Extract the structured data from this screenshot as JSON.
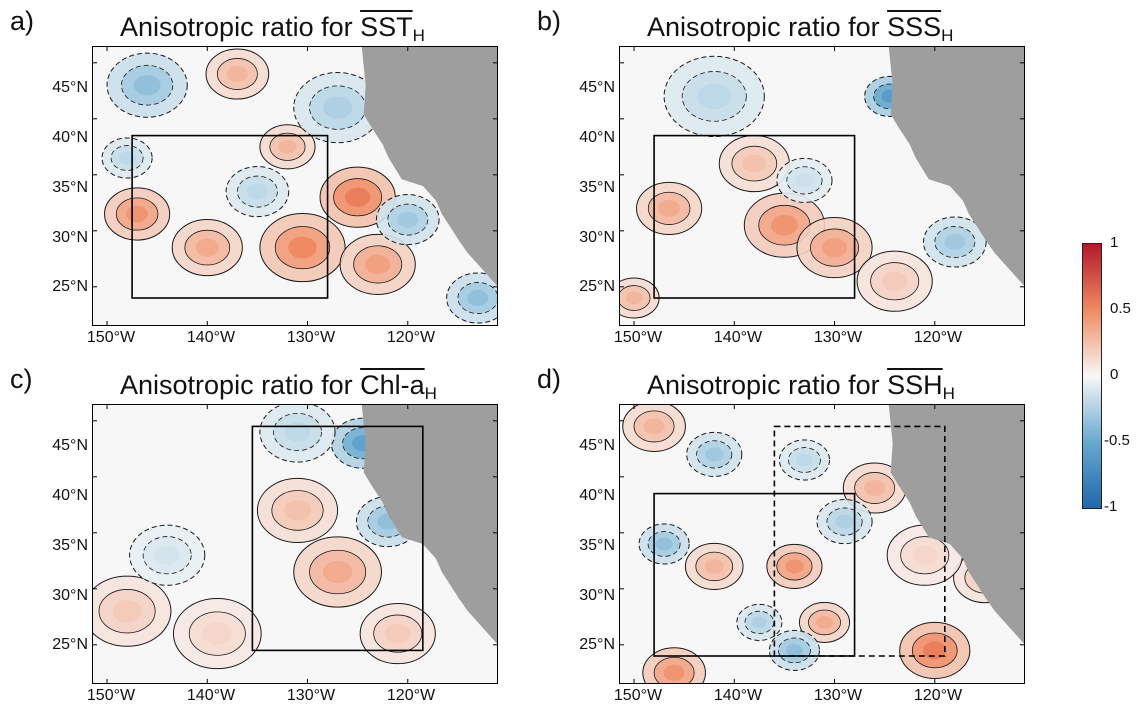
{
  "figure": {
    "colorbar": {
      "ticks": [
        "1",
        "0.5",
        "0",
        "-0.5",
        "-1"
      ],
      "tick_values": [
        1,
        0.5,
        0,
        -0.5,
        -1
      ],
      "colors": {
        "max": "#b2182b",
        "mid_pos": "#ef8a62",
        "zero": "#f7f7f7",
        "mid_neg": "#67a9cf",
        "min": "#2166ac"
      }
    },
    "land_color": "#9e9e9e",
    "contour_color": "#1a1a1a"
  },
  "chart_data": [
    {
      "type": "heatmap",
      "panel_label": "a)",
      "title_prefix": "Anisotropic ratio for ",
      "title_symbol": "SST",
      "title_subscript": "H",
      "x_ticks": [
        "150°W",
        "140°W",
        "130°W",
        "120°W"
      ],
      "x_tick_values": [
        -150,
        -140,
        -130,
        -120
      ],
      "y_ticks": [
        "45°N",
        "40°N",
        "35°N",
        "30°N",
        "25°N"
      ],
      "y_tick_values": [
        45,
        40,
        35,
        30,
        25
      ],
      "xlim": [
        -151.5,
        -111
      ],
      "ylim": [
        21.5,
        46.5
      ],
      "colorbar_range": [
        -1,
        1
      ],
      "boxes": [
        {
          "style": "solid",
          "lon": [
            -147.5,
            -128
          ],
          "lat": [
            24,
            38.5
          ]
        }
      ],
      "blobs": [
        {
          "lon": -147,
          "lat": 31.5,
          "value": 0.45,
          "r": 2.6
        },
        {
          "lon": -140,
          "lat": 28.5,
          "value": 0.35,
          "r": 2.8
        },
        {
          "lon": -130.5,
          "lat": 28.5,
          "value": 0.5,
          "r": 3.4
        },
        {
          "lon": -125,
          "lat": 33,
          "value": 0.55,
          "r": 3.0
        },
        {
          "lon": -123,
          "lat": 27,
          "value": 0.4,
          "r": 3.0
        },
        {
          "lon": -132,
          "lat": 37.5,
          "value": 0.3,
          "r": 2.2
        },
        {
          "lon": -137,
          "lat": 44,
          "value": 0.3,
          "r": 2.5
        },
        {
          "lon": -146,
          "lat": 43,
          "value": -0.35,
          "r": 3.2
        },
        {
          "lon": -127,
          "lat": 41,
          "value": -0.25,
          "r": 3.5
        },
        {
          "lon": -120,
          "lat": 31,
          "value": -0.3,
          "r": 2.5
        },
        {
          "lon": -135,
          "lat": 33.5,
          "value": -0.2,
          "r": 2.5
        },
        {
          "lon": -148,
          "lat": 36.5,
          "value": -0.2,
          "r": 2.0
        },
        {
          "lon": -113,
          "lat": 24,
          "value": -0.35,
          "r": 2.5
        }
      ]
    },
    {
      "type": "heatmap",
      "panel_label": "b)",
      "title_prefix": "Anisotropic ratio for ",
      "title_symbol": "SSS",
      "title_subscript": "H",
      "x_ticks": [
        "150°W",
        "140°W",
        "130°W",
        "120°W"
      ],
      "x_tick_values": [
        -150,
        -140,
        -130,
        -120
      ],
      "y_ticks": [
        "45°N",
        "40°N",
        "35°N",
        "30°N",
        "25°N"
      ],
      "y_tick_values": [
        45,
        40,
        35,
        30,
        25
      ],
      "xlim": [
        -151.5,
        -111
      ],
      "ylim": [
        21.5,
        46.5
      ],
      "colorbar_range": [
        -1,
        1
      ],
      "boxes": [
        {
          "style": "solid",
          "lon": [
            -148,
            -128
          ],
          "lat": [
            24,
            38.5
          ]
        }
      ],
      "blobs": [
        {
          "lon": -146.5,
          "lat": 32,
          "value": 0.35,
          "r": 2.6
        },
        {
          "lon": -135,
          "lat": 30.5,
          "value": 0.45,
          "r": 3.2
        },
        {
          "lon": -130,
          "lat": 28.5,
          "value": 0.4,
          "r": 3.0
        },
        {
          "lon": -138,
          "lat": 36,
          "value": 0.25,
          "r": 2.8
        },
        {
          "lon": -150,
          "lat": 24,
          "value": 0.3,
          "r": 2.0
        },
        {
          "lon": -124,
          "lat": 25.5,
          "value": 0.2,
          "r": 3.0
        },
        {
          "lon": -124.5,
          "lat": 42,
          "value": -0.6,
          "r": 2.0
        },
        {
          "lon": -142,
          "lat": 42,
          "value": -0.2,
          "r": 4.0
        },
        {
          "lon": -118,
          "lat": 29,
          "value": -0.3,
          "r": 2.5
        },
        {
          "lon": -133,
          "lat": 34.5,
          "value": -0.15,
          "r": 2.2
        }
      ]
    },
    {
      "type": "heatmap",
      "panel_label": "c)",
      "title_prefix": "Anisotropic ratio for ",
      "title_symbol": "Chl-a",
      "title_subscript": "H",
      "x_ticks": [
        "150°W",
        "140°W",
        "130°W",
        "120°W"
      ],
      "x_tick_values": [
        -150,
        -140,
        -130,
        -120
      ],
      "y_ticks": [
        "45°N",
        "40°N",
        "35°N",
        "30°N",
        "25°N"
      ],
      "y_tick_values": [
        45,
        40,
        35,
        30,
        25
      ],
      "xlim": [
        -151.5,
        -111
      ],
      "ylim": [
        21.5,
        46.5
      ],
      "colorbar_range": [
        -1,
        1
      ],
      "boxes": [
        {
          "style": "solid",
          "lon": [
            -135.5,
            -118.5
          ],
          "lat": [
            24.5,
            44.5
          ]
        }
      ],
      "blobs": [
        {
          "lon": -127,
          "lat": 31.5,
          "value": 0.35,
          "r": 3.5
        },
        {
          "lon": -131,
          "lat": 37,
          "value": 0.25,
          "r": 3.2
        },
        {
          "lon": -148,
          "lat": 28,
          "value": 0.2,
          "r": 3.5
        },
        {
          "lon": -139,
          "lat": 26,
          "value": 0.15,
          "r": 3.5
        },
        {
          "lon": -121,
          "lat": 26,
          "value": 0.2,
          "r": 3.0
        },
        {
          "lon": -124.5,
          "lat": 43,
          "value": -0.55,
          "r": 2.5
        },
        {
          "lon": -122,
          "lat": 36,
          "value": -0.35,
          "r": 2.5
        },
        {
          "lon": -131,
          "lat": 44,
          "value": -0.2,
          "r": 3.0
        },
        {
          "lon": -144,
          "lat": 33,
          "value": -0.12,
          "r": 3.0
        }
      ]
    },
    {
      "type": "heatmap",
      "panel_label": "d)",
      "title_prefix": "Anisotropic ratio for ",
      "title_symbol": "SSH",
      "title_subscript": "H",
      "x_ticks": [
        "150°W",
        "140°W",
        "130°W",
        "120°W"
      ],
      "x_tick_values": [
        -150,
        -140,
        -130,
        -120
      ],
      "y_ticks": [
        "45°N",
        "40°N",
        "35°N",
        "30°N",
        "25°N"
      ],
      "y_tick_values": [
        45,
        40,
        35,
        30,
        25
      ],
      "xlim": [
        -151.5,
        -111
      ],
      "ylim": [
        21.5,
        46.5
      ],
      "colorbar_range": [
        -1,
        1
      ],
      "boxes": [
        {
          "style": "solid",
          "lon": [
            -148,
            -128
          ],
          "lat": [
            24,
            38.5
          ]
        },
        {
          "style": "dashed",
          "lon": [
            -136,
            -119
          ],
          "lat": [
            24,
            44.5
          ]
        }
      ],
      "blobs": [
        {
          "lon": -120,
          "lat": 24.5,
          "value": 0.55,
          "r": 2.8
        },
        {
          "lon": -134,
          "lat": 32,
          "value": 0.45,
          "r": 2.2
        },
        {
          "lon": -146,
          "lat": 22.5,
          "value": 0.45,
          "r": 2.5
        },
        {
          "lon": -142,
          "lat": 32,
          "value": 0.3,
          "r": 2.3
        },
        {
          "lon": -131,
          "lat": 27,
          "value": 0.35,
          "r": 2.0
        },
        {
          "lon": -126,
          "lat": 39,
          "value": 0.3,
          "r": 2.5
        },
        {
          "lon": -148,
          "lat": 44.5,
          "value": 0.3,
          "r": 2.5
        },
        {
          "lon": -142,
          "lat": 42,
          "value": -0.3,
          "r": 2.2
        },
        {
          "lon": -147,
          "lat": 34,
          "value": -0.35,
          "r": 2.0
        },
        {
          "lon": -137.5,
          "lat": 27,
          "value": -0.25,
          "r": 1.8
        },
        {
          "lon": -134,
          "lat": 24.5,
          "value": -0.35,
          "r": 2.0
        },
        {
          "lon": -129,
          "lat": 36,
          "value": -0.25,
          "r": 2.2
        },
        {
          "lon": -133,
          "lat": 41.5,
          "value": -0.2,
          "r": 2.0
        },
        {
          "lon": -115,
          "lat": 31,
          "value": 0.2,
          "r": 2.5
        },
        {
          "lon": -121,
          "lat": 33,
          "value": 0.15,
          "r": 3.0
        }
      ]
    }
  ]
}
